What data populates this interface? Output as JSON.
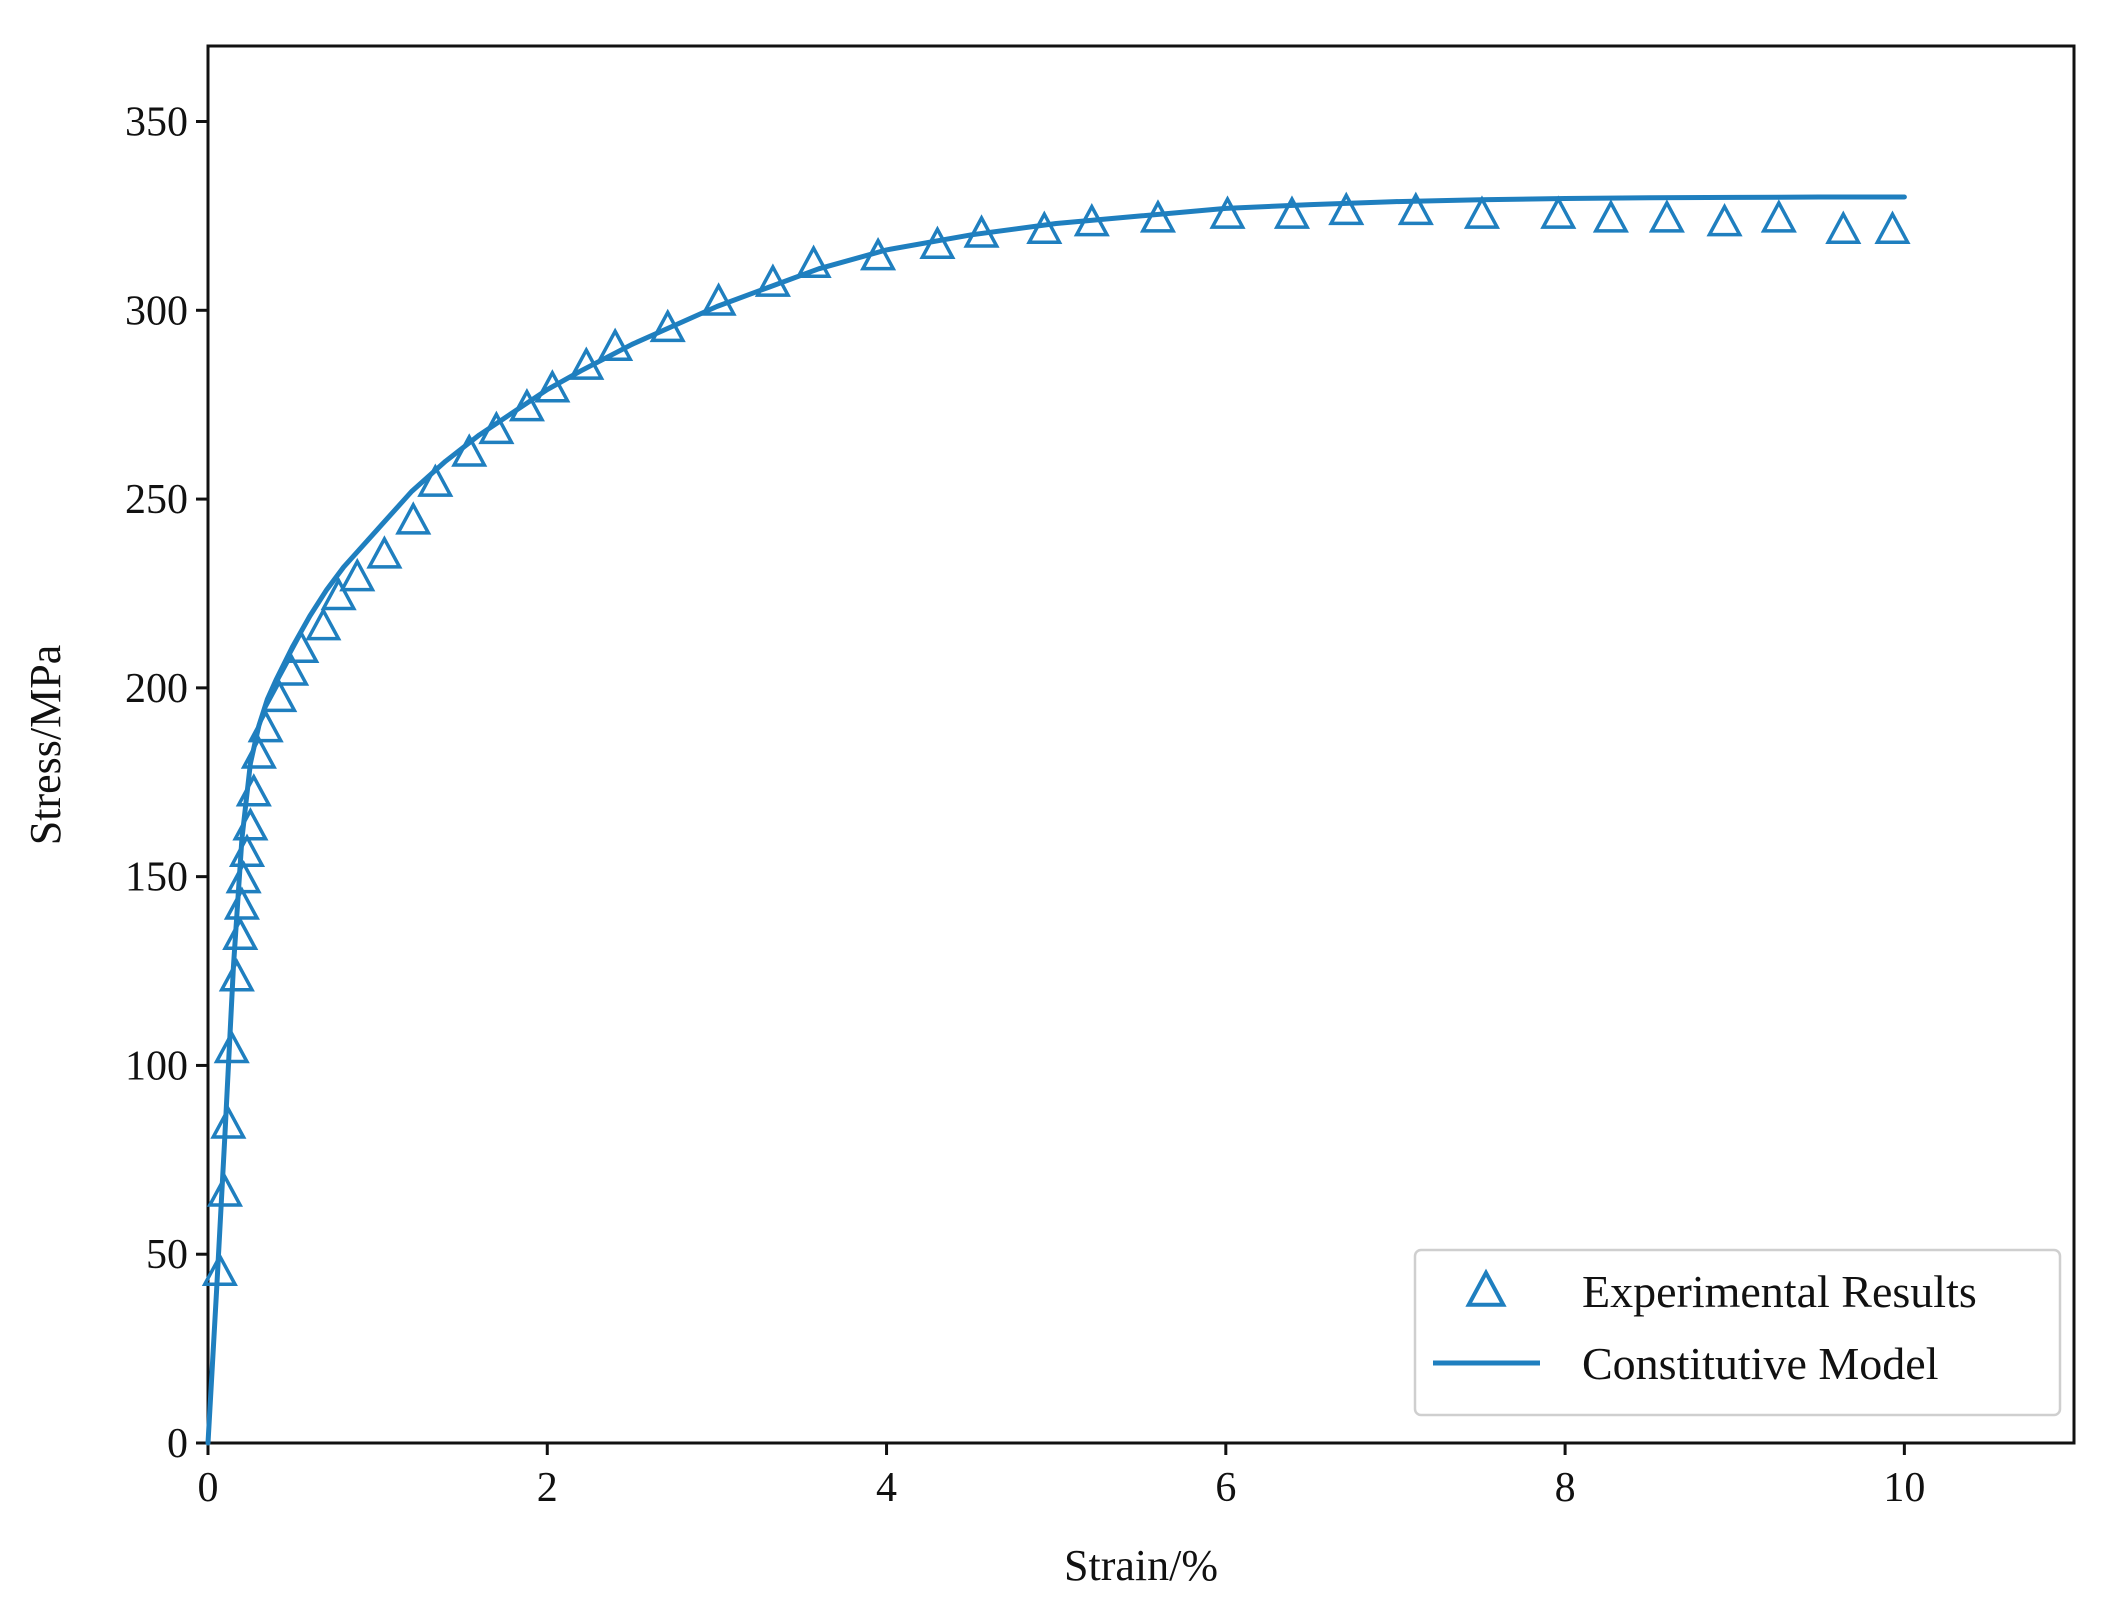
{
  "chart_data": {
    "type": "scatter",
    "xlabel": "Strain/%",
    "ylabel": "Stress/MPa",
    "xlim": [
      0,
      11
    ],
    "ylim": [
      0,
      370
    ],
    "xticks": [
      "0",
      "2",
      "4",
      "6",
      "8",
      "10"
    ],
    "yticks": [
      "0",
      "50",
      "100",
      "150",
      "200",
      "250",
      "300",
      "350"
    ],
    "grid": false,
    "legend_position": "bottom-right",
    "colors": {
      "series": "#1f7fbf",
      "axis": "#111111"
    },
    "series": [
      {
        "name": "Experimental Results",
        "marker": "triangle-open",
        "x": [
          0.07,
          0.1,
          0.12,
          0.14,
          0.17,
          0.19,
          0.2,
          0.21,
          0.23,
          0.25,
          0.27,
          0.3,
          0.34,
          0.42,
          0.49,
          0.55,
          0.68,
          0.77,
          0.88,
          1.04,
          1.21,
          1.34,
          1.54,
          1.7,
          1.88,
          2.03,
          2.23,
          2.4,
          2.71,
          3.01,
          3.33,
          3.57,
          3.95,
          4.3,
          4.56,
          4.93,
          5.21,
          5.6,
          6.01,
          6.39,
          6.71,
          7.12,
          7.51,
          7.96,
          8.27,
          8.6,
          8.94,
          9.26,
          9.64,
          9.93
        ],
        "y": [
          45,
          66,
          84,
          104,
          123,
          134,
          142,
          149,
          156,
          163,
          172,
          182,
          189,
          197,
          204,
          210,
          216,
          224,
          229,
          235,
          244,
          254,
          262,
          268,
          274,
          279,
          285,
          290,
          295,
          302,
          307,
          312,
          314,
          317,
          320,
          321,
          323,
          324,
          325,
          325,
          326,
          326,
          325,
          325,
          324,
          324,
          323,
          324,
          321,
          321
        ]
      },
      {
        "name": "Constitutive Model",
        "marker": "line",
        "x": [
          0,
          0.05,
          0.1,
          0.15,
          0.2,
          0.25,
          0.3,
          0.35,
          0.4,
          0.5,
          0.6,
          0.7,
          0.8,
          1.0,
          1.2,
          1.4,
          1.6,
          1.8,
          2.0,
          2.2,
          2.5,
          2.8,
          3.0,
          3.3,
          3.6,
          4.0,
          4.5,
          5.0,
          5.5,
          6.0,
          6.5,
          7.0,
          7.5,
          8.0,
          8.5,
          9.0,
          9.5,
          10.0
        ],
        "y": [
          0,
          40,
          82,
          126,
          160,
          180,
          190,
          197,
          202,
          211,
          219,
          226,
          232,
          242,
          252,
          260,
          267,
          273,
          279,
          284,
          291,
          297,
          301,
          306,
          311,
          316,
          320,
          323,
          325,
          327,
          328,
          328.8,
          329.3,
          329.6,
          329.8,
          329.9,
          330,
          330
        ]
      }
    ]
  }
}
